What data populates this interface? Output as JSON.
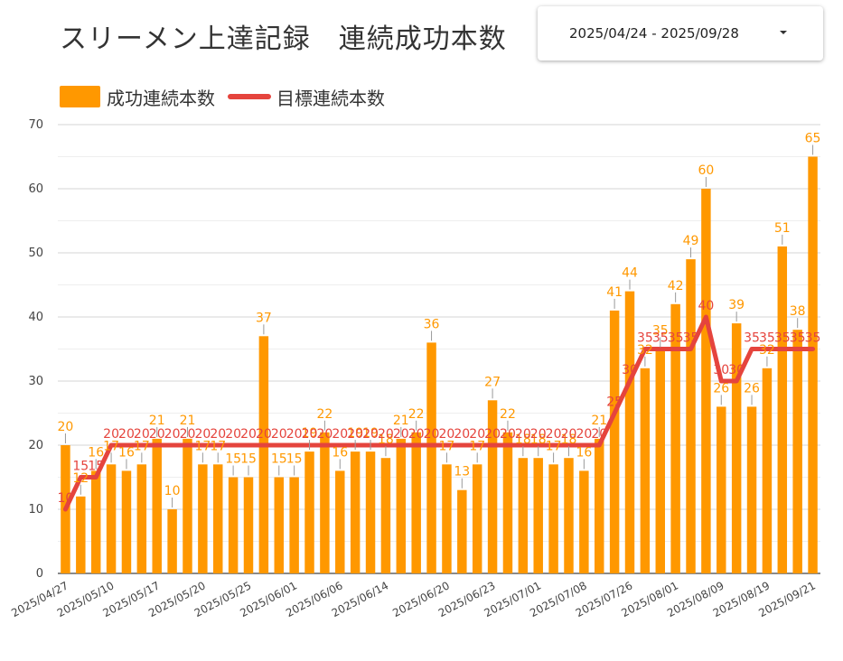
{
  "title": "スリーメン上達記録　連続成功本数",
  "date_range": {
    "value": "2025/04/24 - 2025/09/28",
    "caret_icon": "caret-down-icon"
  },
  "legend": [
    {
      "label": "成功連続本数",
      "color": "#ff9800"
    },
    {
      "label": "目標連続本数",
      "color": "#e5443d"
    }
  ],
  "chart_data": {
    "type": "bar",
    "title": "スリーメン上達記録　連続成功本数",
    "y_ticks": [
      "0",
      "10",
      "20",
      "30",
      "40",
      "50",
      "60",
      "70"
    ],
    "ylim": [
      0,
      70
    ],
    "grid": true,
    "legend_position": "top-left",
    "x_tick_labels": [
      "2025/04/27",
      "2025/05/10",
      "2025/05/17",
      "2025/05/20",
      "2025/05/25",
      "2025/06/01",
      "2025/06/06",
      "2025/06/14",
      "2025/06/20",
      "2025/06/23",
      "2025/07/01",
      "2025/07/08",
      "2025/07/26",
      "2025/08/01",
      "2025/08/09",
      "2025/08/19",
      "2025/09/21"
    ],
    "series": [
      {
        "name": "成功連続本数",
        "kind": "bar",
        "color": "#ff9800",
        "values": [
          20,
          12,
          16,
          17,
          16,
          17,
          21,
          10,
          21,
          17,
          17,
          15,
          15,
          37,
          15,
          15,
          19,
          22,
          16,
          19,
          19,
          18,
          21,
          22,
          36,
          17,
          13,
          17,
          27,
          22,
          18,
          18,
          17,
          18,
          16,
          21,
          41,
          44,
          32,
          35,
          42,
          49,
          60,
          26,
          39,
          26,
          32,
          51,
          38,
          65
        ]
      },
      {
        "name": "目標連続本数",
        "kind": "line",
        "color": "#e5443d",
        "values": [
          10,
          15,
          15,
          20,
          20,
          20,
          20,
          20,
          20,
          20,
          20,
          20,
          20,
          20,
          20,
          20,
          20,
          20,
          20,
          20,
          20,
          20,
          20,
          20,
          20,
          20,
          20,
          20,
          20,
          20,
          20,
          20,
          20,
          20,
          20,
          20,
          25,
          30,
          35,
          35,
          35,
          35,
          40,
          30,
          30,
          35,
          35,
          35,
          35,
          35
        ]
      }
    ]
  }
}
